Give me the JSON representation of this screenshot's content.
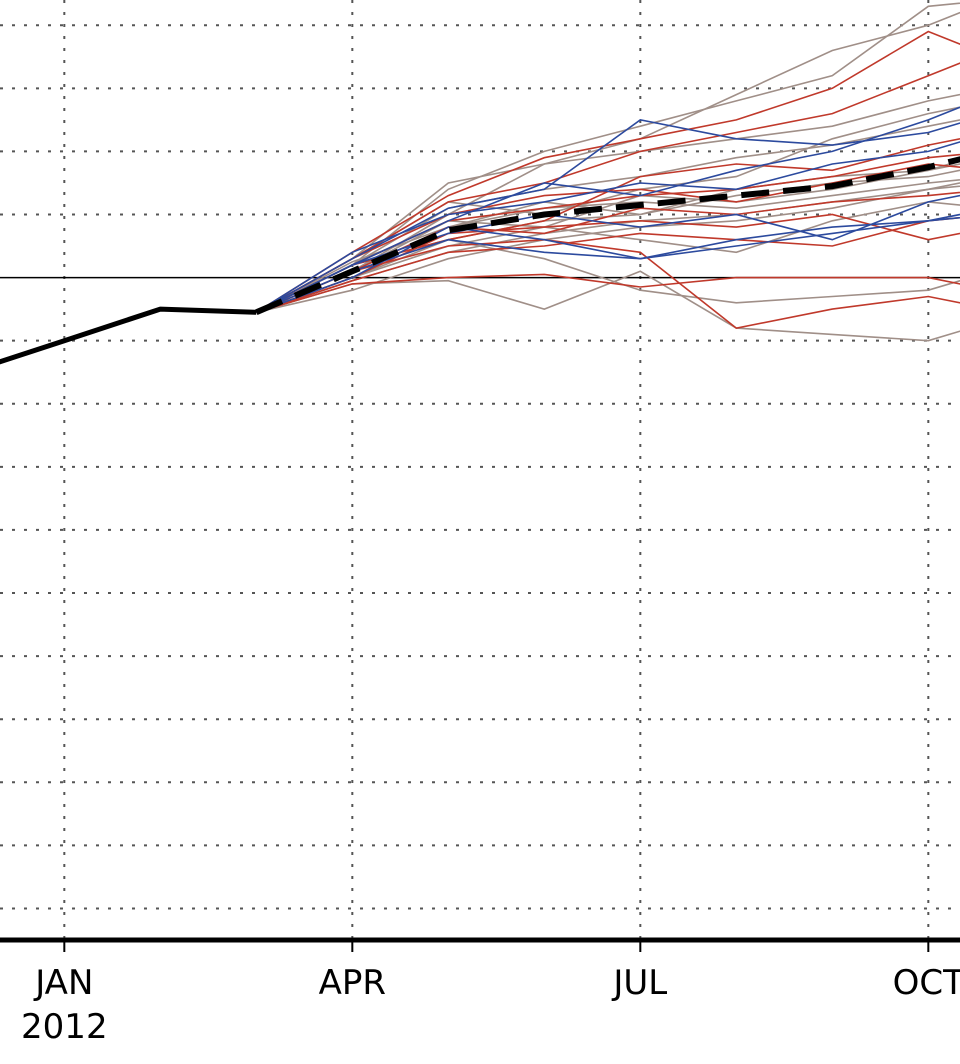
{
  "chart_data": {
    "type": "line",
    "title": "",
    "xlabel": "",
    "ylabel": "",
    "x_axis": {
      "range": [
        0,
        10
      ],
      "ticks": [
        {
          "x": 0.67,
          "label": "JAN",
          "sublabel": "2012"
        },
        {
          "x": 3.67,
          "label": "APR",
          "sublabel": ""
        },
        {
          "x": 6.67,
          "label": "JUL",
          "sublabel": ""
        },
        {
          "x": 9.67,
          "label": "OCT",
          "sublabel": ""
        }
      ],
      "vertical_gridlines": [
        0.67,
        3.67,
        6.67,
        9.67
      ]
    },
    "y_axis": {
      "range": [
        -10.5,
        4.4
      ],
      "gridlines": [
        -10,
        -9,
        -8,
        -7,
        -6,
        -5,
        -4,
        -3,
        -2,
        -1,
        1,
        2,
        3,
        4
      ],
      "zero_line": 0
    },
    "grid": true,
    "colors": {
      "observed": "#000000",
      "mean": "#000000",
      "grid": "#555555",
      "red": "#c0392b",
      "blue": "#2c4a9e",
      "gray": "#a08f88"
    },
    "observed": {
      "x": [
        -0.33,
        0.67,
        1.67,
        2.67
      ],
      "y": [
        -1.5,
        -1.0,
        -0.5,
        -0.55
      ]
    },
    "ensemble_mean": {
      "x": [
        2.67,
        3.67,
        4.67,
        5.67,
        6.67,
        7.67,
        8.67,
        9.67,
        10.33
      ],
      "y": [
        -0.55,
        0.1,
        0.75,
        1.0,
        1.15,
        1.3,
        1.45,
        1.75,
        2.0
      ]
    },
    "members": {
      "x": [
        2.67,
        3.67,
        4.67,
        5.67,
        6.67,
        7.67,
        8.67,
        9.67,
        10.33
      ],
      "series": [
        {
          "color": "red",
          "values": [
            -0.55,
            -0.1,
            0.0,
            0.05,
            -0.15,
            0.0,
            0.0,
            0.0,
            -0.2
          ]
        },
        {
          "color": "red",
          "values": [
            -0.55,
            0.1,
            0.5,
            0.6,
            0.4,
            -0.8,
            -0.5,
            -0.3,
            -0.5
          ]
        },
        {
          "color": "red",
          "values": [
            -0.55,
            0.3,
            1.2,
            1.5,
            2.0,
            2.3,
            2.6,
            3.2,
            3.6
          ]
        },
        {
          "color": "red",
          "values": [
            -0.55,
            0.2,
            0.9,
            1.1,
            1.3,
            1.4,
            1.6,
            1.9,
            2.0
          ]
        },
        {
          "color": "red",
          "values": [
            -0.55,
            0.4,
            1.3,
            1.9,
            2.2,
            2.5,
            3.0,
            3.9,
            3.5
          ]
        },
        {
          "color": "red",
          "values": [
            -0.55,
            0.0,
            0.7,
            0.8,
            0.9,
            0.8,
            1.0,
            0.6,
            0.8
          ]
        },
        {
          "color": "red",
          "values": [
            -0.55,
            0.1,
            0.8,
            0.7,
            1.1,
            1.0,
            1.2,
            1.3,
            1.4
          ]
        },
        {
          "color": "red",
          "values": [
            -0.55,
            0.2,
            0.6,
            0.9,
            1.6,
            1.8,
            1.7,
            2.1,
            2.3
          ]
        },
        {
          "color": "red",
          "values": [
            -0.55,
            -0.05,
            0.4,
            0.5,
            0.7,
            0.6,
            0.5,
            0.9,
            1.0
          ]
        },
        {
          "color": "red",
          "values": [
            -0.55,
            0.3,
            1.0,
            1.3,
            1.4,
            1.2,
            1.5,
            1.8,
            1.7
          ]
        },
        {
          "color": "blue",
          "values": [
            -0.55,
            0.3,
            1.1,
            1.4,
            2.5,
            2.2,
            2.1,
            2.3,
            2.6
          ]
        },
        {
          "color": "blue",
          "values": [
            -0.55,
            0.0,
            0.8,
            0.6,
            0.3,
            0.6,
            0.8,
            0.9,
            1.1
          ]
        },
        {
          "color": "blue",
          "values": [
            -0.55,
            0.2,
            0.9,
            1.5,
            1.3,
            1.7,
            2.0,
            2.5,
            2.9
          ]
        },
        {
          "color": "blue",
          "values": [
            -0.55,
            0.1,
            0.6,
            0.4,
            0.3,
            0.5,
            0.7,
            0.9,
            1.0
          ]
        },
        {
          "color": "blue",
          "values": [
            -0.55,
            0.4,
            1.0,
            1.2,
            1.5,
            1.4,
            1.8,
            2.0,
            2.3
          ]
        },
        {
          "color": "blue",
          "values": [
            -0.55,
            0.2,
            0.7,
            1.0,
            0.8,
            1.0,
            0.6,
            1.2,
            1.4
          ]
        },
        {
          "color": "gray",
          "values": [
            -0.55,
            0.2,
            1.4,
            2.0,
            2.4,
            2.8,
            3.2,
            4.3,
            4.4
          ]
        },
        {
          "color": "gray",
          "values": [
            -0.55,
            -0.1,
            -0.05,
            -0.5,
            0.1,
            -0.8,
            -0.9,
            -1.0,
            -0.7
          ]
        },
        {
          "color": "gray",
          "values": [
            -0.55,
            0.1,
            1.0,
            1.8,
            2.2,
            2.9,
            3.6,
            4.0,
            4.4
          ]
        },
        {
          "color": "gray",
          "values": [
            -0.55,
            0.0,
            0.5,
            0.8,
            0.6,
            0.4,
            0.9,
            1.2,
            1.1
          ]
        },
        {
          "color": "gray",
          "values": [
            -0.55,
            0.3,
            1.2,
            1.0,
            1.4,
            1.6,
            2.2,
            2.6,
            2.8
          ]
        },
        {
          "color": "gray",
          "values": [
            -0.55,
            0.1,
            0.8,
            1.1,
            1.2,
            1.1,
            1.3,
            1.5,
            1.6
          ]
        },
        {
          "color": "gray",
          "values": [
            -0.55,
            -0.2,
            0.3,
            0.6,
            0.8,
            0.9,
            1.1,
            1.4,
            1.6
          ]
        },
        {
          "color": "gray",
          "values": [
            -0.55,
            0.2,
            0.6,
            0.3,
            -0.2,
            -0.4,
            -0.3,
            -0.2,
            0.1
          ]
        },
        {
          "color": "gray",
          "values": [
            -0.55,
            0.3,
            1.5,
            1.8,
            2.0,
            2.2,
            2.4,
            2.8,
            3.0
          ]
        },
        {
          "color": "gray",
          "values": [
            -0.55,
            0.0,
            0.6,
            0.9,
            1.0,
            1.4,
            1.6,
            1.7,
            2.0
          ]
        },
        {
          "color": "gray",
          "values": [
            -0.55,
            0.1,
            0.9,
            0.8,
            1.3,
            1.2,
            1.4,
            1.7,
            1.9
          ]
        },
        {
          "color": "gray",
          "values": [
            -0.55,
            0.2,
            1.1,
            1.4,
            1.6,
            1.9,
            2.1,
            2.4,
            2.6
          ]
        },
        {
          "color": "gray",
          "values": [
            -0.55,
            -0.05,
            0.4,
            0.7,
            0.9,
            1.0,
            1.2,
            1.4,
            1.5
          ]
        },
        {
          "color": "gray",
          "values": [
            -0.55,
            0.25,
            0.8,
            1.2,
            1.0,
            1.3,
            1.5,
            1.6,
            1.8
          ]
        }
      ]
    }
  }
}
